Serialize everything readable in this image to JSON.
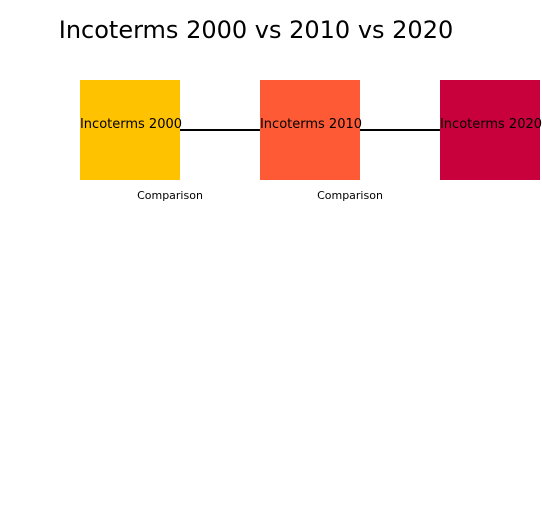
{
  "title": "Incoterms 2000 vs 2010 vs 2020",
  "nodes": [
    {
      "label": "Incoterms 2000",
      "color": "#FFC200"
    },
    {
      "label": "Incoterms 2010",
      "color": "#FF5A36"
    },
    {
      "label": "Incoterms 2020",
      "color": "#C8003C"
    }
  ],
  "edges": [
    {
      "from": "Incoterms 2000",
      "to": "Incoterms 2010",
      "label": "Comparison"
    },
    {
      "from": "Incoterms 2010",
      "to": "Incoterms 2020",
      "label": "Comparison"
    }
  ]
}
